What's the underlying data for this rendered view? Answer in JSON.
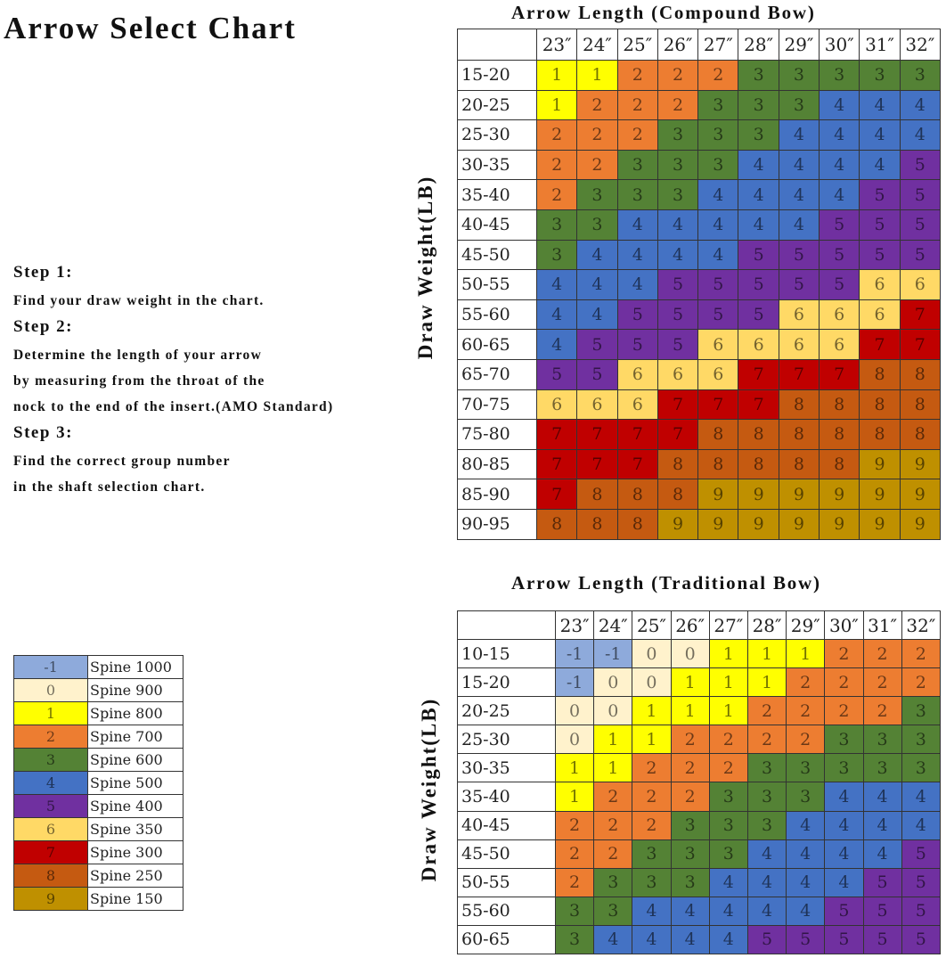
{
  "title": "Arrow Select Chart",
  "steps": [
    {
      "heading": "Step 1:",
      "text": "Find your draw weight in the chart."
    },
    {
      "heading": "Step 2:",
      "text": "Determine the length of your arrow\nby measuring from the throat of the\nnock to the end of the insert.(AMO Standard)"
    },
    {
      "heading": "Step 3:",
      "text": "Find the correct group number\nin the shaft selection chart."
    }
  ],
  "colors": {
    "-1": "#8eaadb",
    "0": "#fff2cc",
    "1": "#ffff00",
    "2": "#ed7d31",
    "3": "#548235",
    "4": "#4472c4",
    "5": "#7030a0",
    "6": "#ffd966",
    "7": "#c00000",
    "8": "#c55a11",
    "9": "#bf9000"
  },
  "legend": [
    {
      "group": "-1",
      "label": "Spine 1000"
    },
    {
      "group": "0",
      "label": "Spine 900"
    },
    {
      "group": "1",
      "label": "Spine 800"
    },
    {
      "group": "2",
      "label": "Spine 700"
    },
    {
      "group": "3",
      "label": "Spine 600"
    },
    {
      "group": "4",
      "label": "Spine 500"
    },
    {
      "group": "5",
      "label": "Spine 400"
    },
    {
      "group": "6",
      "label": "Spine 350"
    },
    {
      "group": "7",
      "label": "Spine 300"
    },
    {
      "group": "8",
      "label": "Spine 250"
    },
    {
      "group": "9",
      "label": "Spine 150"
    }
  ],
  "chart_data": [
    {
      "type": "table",
      "title": "Arrow Length (Compound Bow)",
      "ylabel": "Draw Weight(LB)",
      "columns": [
        "23″",
        "24″",
        "25″",
        "26″",
        "27″",
        "28″",
        "29″",
        "30″",
        "31″",
        "32″"
      ],
      "rows": [
        "15-20",
        "20-25",
        "25-30",
        "30-35",
        "35-40",
        "40-45",
        "45-50",
        "50-55",
        "55-60",
        "60-65",
        "65-70",
        "70-75",
        "75-80",
        "80-85",
        "85-90",
        "90-95"
      ],
      "values": [
        [
          1,
          1,
          2,
          2,
          2,
          3,
          3,
          3,
          3,
          3
        ],
        [
          1,
          2,
          2,
          2,
          3,
          3,
          3,
          4,
          4,
          4
        ],
        [
          2,
          2,
          2,
          3,
          3,
          3,
          4,
          4,
          4,
          4
        ],
        [
          2,
          2,
          3,
          3,
          3,
          4,
          4,
          4,
          4,
          5
        ],
        [
          2,
          3,
          3,
          3,
          4,
          4,
          4,
          4,
          5,
          5
        ],
        [
          3,
          3,
          4,
          4,
          4,
          4,
          4,
          5,
          5,
          5
        ],
        [
          3,
          4,
          4,
          4,
          4,
          5,
          5,
          5,
          5,
          5
        ],
        [
          4,
          4,
          4,
          5,
          5,
          5,
          5,
          5,
          6,
          6
        ],
        [
          4,
          4,
          5,
          5,
          5,
          5,
          6,
          6,
          6,
          7
        ],
        [
          4,
          5,
          5,
          5,
          6,
          6,
          6,
          6,
          7,
          7
        ],
        [
          5,
          5,
          6,
          6,
          6,
          7,
          7,
          7,
          8,
          8
        ],
        [
          6,
          6,
          6,
          7,
          7,
          7,
          8,
          8,
          8,
          8
        ],
        [
          7,
          7,
          7,
          7,
          8,
          8,
          8,
          8,
          8,
          8
        ],
        [
          7,
          7,
          7,
          8,
          8,
          8,
          8,
          8,
          9,
          9
        ],
        [
          7,
          8,
          8,
          8,
          9,
          9,
          9,
          9,
          9,
          9
        ],
        [
          8,
          8,
          8,
          9,
          9,
          9,
          9,
          9,
          9,
          9
        ]
      ]
    },
    {
      "type": "table",
      "title": "Arrow Length  (Traditional Bow)",
      "ylabel": "Draw Weight(LB)",
      "columns": [
        "23″",
        "24″",
        "25″",
        "26″",
        "27″",
        "28″",
        "29″",
        "30″",
        "31″",
        "32″"
      ],
      "rows": [
        "10-15",
        "15-20",
        "20-25",
        "25-30",
        "30-35",
        "35-40",
        "40-45",
        "45-50",
        "50-55",
        "55-60",
        "60-65"
      ],
      "values": [
        [
          -1,
          -1,
          0,
          0,
          1,
          1,
          1,
          2,
          2,
          2
        ],
        [
          -1,
          0,
          0,
          1,
          1,
          1,
          2,
          2,
          2,
          2
        ],
        [
          0,
          0,
          1,
          1,
          1,
          2,
          2,
          2,
          2,
          3
        ],
        [
          0,
          1,
          1,
          2,
          2,
          2,
          2,
          3,
          3,
          3
        ],
        [
          1,
          1,
          2,
          2,
          2,
          3,
          3,
          3,
          3,
          3
        ],
        [
          1,
          2,
          2,
          2,
          3,
          3,
          3,
          4,
          4,
          4
        ],
        [
          2,
          2,
          2,
          3,
          3,
          3,
          4,
          4,
          4,
          4
        ],
        [
          2,
          2,
          3,
          3,
          3,
          4,
          4,
          4,
          4,
          5
        ],
        [
          2,
          3,
          3,
          3,
          4,
          4,
          4,
          4,
          5,
          5
        ],
        [
          3,
          3,
          4,
          4,
          4,
          4,
          4,
          5,
          5,
          5
        ],
        [
          3,
          4,
          4,
          4,
          4,
          5,
          5,
          5,
          5,
          5
        ]
      ]
    }
  ]
}
